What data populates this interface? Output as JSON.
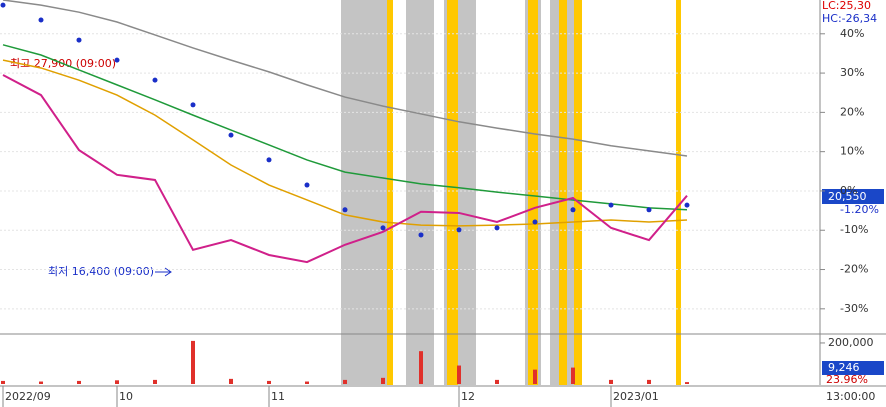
{
  "chart_data": {
    "type": "line",
    "categories": [
      "2022/09",
      null,
      null,
      "10",
      null,
      null,
      null,
      "11",
      null,
      null,
      null,
      null,
      "12",
      null,
      null,
      null,
      "2023/01",
      null,
      null
    ],
    "ylim": [
      -35.9,
      48.6
    ],
    "yticks": [
      {
        "value": 40,
        "label": "40%"
      },
      {
        "value": 30,
        "label": "30%"
      },
      {
        "value": 20,
        "label": "20%"
      },
      {
        "value": 10,
        "label": "10%"
      },
      {
        "value": 0,
        "label": "0%"
      },
      {
        "value": -10,
        "label": "-10%"
      },
      {
        "value": -20,
        "label": "-20%"
      },
      {
        "value": -30,
        "label": "-30%"
      }
    ],
    "series": [
      {
        "color": "#8a8a8a",
        "values": [
          48.6,
          47.3,
          45.5,
          43.0,
          39.7,
          36.4,
          33.3,
          30.3,
          27.0,
          23.9,
          21.6,
          19.6,
          17.6,
          16.0,
          14.5,
          13.2,
          11.5,
          10.2,
          8.9
        ]
      },
      {
        "color": "#1f9a3a",
        "values": [
          37.2,
          34.6,
          30.8,
          27.0,
          23.2,
          19.3,
          15.5,
          11.7,
          7.9,
          4.8,
          3.3,
          1.8,
          0.8,
          -0.3,
          -1.3,
          -2.3,
          -3.3,
          -4.3,
          -4.8
        ]
      },
      {
        "color": "#e0a000",
        "values": [
          33.3,
          31.3,
          28.2,
          24.4,
          19.3,
          13.0,
          6.6,
          1.5,
          -2.3,
          -6.1,
          -7.9,
          -8.7,
          -8.9,
          -8.7,
          -8.4,
          -7.9,
          -7.4,
          -7.9,
          -7.4
        ]
      },
      {
        "color": "#d0208a",
        "values": [
          29.5,
          24.4,
          10.4,
          4.1,
          2.8,
          -15.0,
          -12.5,
          -16.3,
          -18.1,
          -13.7,
          -10.4,
          -5.3,
          -5.6,
          -7.9,
          -4.3,
          -1.8,
          -9.4,
          -12.5,
          -1.2
        ]
      }
    ],
    "dots": {
      "color": "#1a2fc8",
      "values": [
        47.3,
        43.5,
        38.4,
        33.3,
        28.2,
        21.9,
        14.2,
        7.9,
        1.5,
        -4.8,
        -9.4,
        -11.2,
        -9.9,
        -9.4,
        -7.9,
        -4.8,
        -3.6,
        -4.8,
        -3.6
      ]
    },
    "volume": {
      "color": "#e0302a",
      "ylim": [
        0,
        229000
      ],
      "yticks": [
        {
          "value": 200000,
          "label": "200,000"
        }
      ],
      "values": [
        15000,
        12000,
        15000,
        18000,
        20000,
        210000,
        25000,
        15000,
        12000,
        20000,
        30000,
        160000,
        90000,
        20000,
        70000,
        80000,
        20000,
        20000,
        9246
      ],
      "last_label": "9,246",
      "ratio_label": "23.96%"
    },
    "x_end_label": "13:00:00",
    "lc_label": "LC:25,30",
    "hc_label": "HC:-26,34",
    "high_annotation": "최고 27,900 (09:00)",
    "low_annotation": "최저 16,400 (09:00)",
    "price_label": "20,550",
    "change_label": "-1.20%"
  }
}
